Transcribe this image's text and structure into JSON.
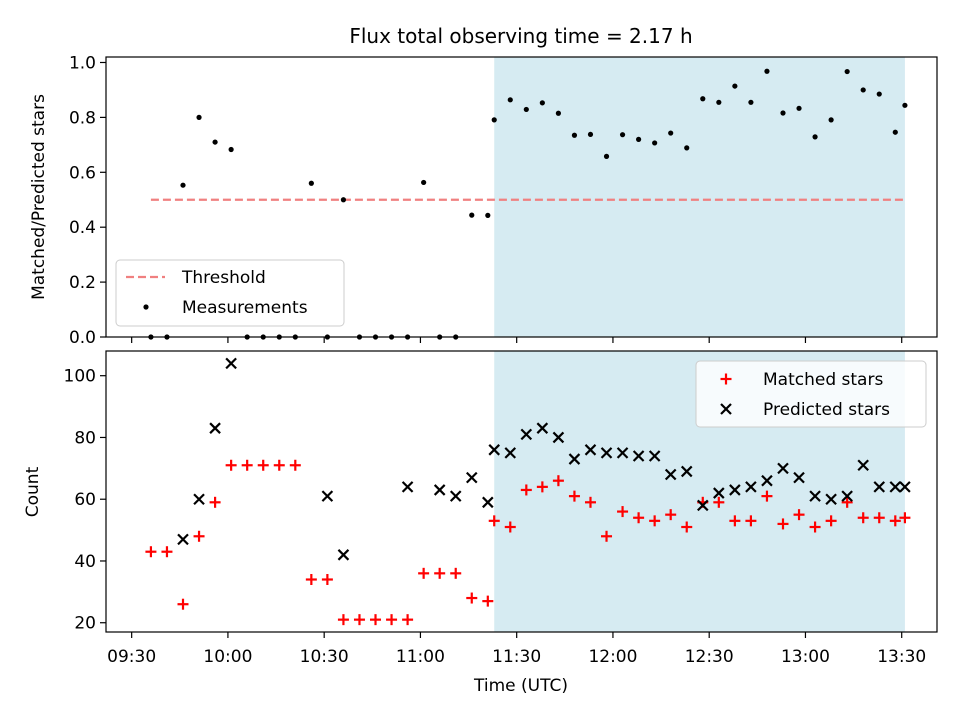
{
  "chart_data": [
    {
      "type": "scatter",
      "title": "Flux total observing time = 2.17 h",
      "ylabel": "Matched/Predicted stars",
      "ylim": [
        0,
        1.02
      ],
      "yticks": [
        0.0,
        0.2,
        0.4,
        0.6,
        0.8,
        1.0
      ],
      "ytick_labels": [
        "0.0",
        "0.2",
        "0.4",
        "0.6",
        "0.8",
        "1.0"
      ],
      "grid": false,
      "legend_position": "lower-left",
      "threshold": {
        "name": "Threshold",
        "value": 0.5,
        "x_start": "09:36",
        "x_end": "13:31",
        "color": "#f08080"
      },
      "shaded_region": {
        "x_start": "11:23",
        "x_end": "13:31",
        "color": "#add8e6"
      },
      "series": [
        {
          "name": "Measurements",
          "color": "#000000",
          "marker": "dot",
          "x": [
            "09:36",
            "09:41",
            "09:46",
            "09:51",
            "09:56",
            "10:01",
            "10:06",
            "10:11",
            "10:16",
            "10:21",
            "10:26",
            "10:31",
            "10:36",
            "10:41",
            "10:46",
            "10:51",
            "10:56",
            "11:01",
            "11:06",
            "11:11",
            "11:16",
            "11:21",
            "11:23",
            "11:28",
            "11:33",
            "11:38",
            "11:43",
            "11:48",
            "11:53",
            "11:58",
            "12:03",
            "12:08",
            "12:13",
            "12:18",
            "12:23",
            "12:28",
            "12:33",
            "12:38",
            "12:43",
            "12:48",
            "12:53",
            "12:58",
            "13:03",
            "13:08",
            "13:13",
            "13:18",
            "13:23",
            "13:28",
            "13:31"
          ],
          "y": [
            0.0,
            0.0,
            0.553,
            0.8,
            0.71,
            0.683,
            0.0,
            0.0,
            0.0,
            0.0,
            0.56,
            0.0,
            0.5,
            0.0,
            0.0,
            0.0,
            0.0,
            0.563,
            0.0,
            0.0,
            0.444,
            0.443,
            0.791,
            0.864,
            0.829,
            0.853,
            0.815,
            0.735,
            0.738,
            0.658,
            0.737,
            0.72,
            0.707,
            0.743,
            0.689,
            0.868,
            0.855,
            0.914,
            0.855,
            0.968,
            0.816,
            0.833,
            0.729,
            0.791,
            0.967,
            0.9,
            0.885,
            0.746,
            0.844
          ]
        }
      ]
    },
    {
      "type": "scatter",
      "ylabel": "Count",
      "xlabel": "Time (UTC)",
      "ylim": [
        17,
        108
      ],
      "yticks": [
        20,
        40,
        60,
        80,
        100
      ],
      "ytick_labels": [
        "20",
        "40",
        "60",
        "80",
        "100"
      ],
      "xlim": [
        "09:22",
        "13:41"
      ],
      "xticks": [
        "09:30",
        "10:00",
        "10:30",
        "11:00",
        "11:30",
        "12:00",
        "12:30",
        "13:00",
        "13:30"
      ],
      "grid": false,
      "legend_position": "upper-right",
      "shaded_region": {
        "x_start": "11:23",
        "x_end": "13:31",
        "color": "#add8e6"
      },
      "series": [
        {
          "name": "Matched stars",
          "color": "#ff0000",
          "marker": "plus",
          "x": [
            "09:36",
            "09:41",
            "09:46",
            "09:51",
            "09:56",
            "10:01",
            "10:06",
            "10:11",
            "10:16",
            "10:21",
            "10:26",
            "10:31",
            "10:36",
            "10:41",
            "10:46",
            "10:51",
            "10:56",
            "11:01",
            "11:06",
            "11:11",
            "11:16",
            "11:21",
            "11:23",
            "11:28",
            "11:33",
            "11:38",
            "11:43",
            "11:48",
            "11:53",
            "11:58",
            "12:03",
            "12:08",
            "12:13",
            "12:18",
            "12:23",
            "12:28",
            "12:33",
            "12:38",
            "12:43",
            "12:48",
            "12:53",
            "12:58",
            "13:03",
            "13:08",
            "13:13",
            "13:18",
            "13:23",
            "13:28",
            "13:31"
          ],
          "y": [
            43,
            43,
            26,
            48,
            59,
            71,
            71,
            71,
            71,
            71,
            34,
            34,
            21,
            21,
            21,
            21,
            21,
            36,
            36,
            36,
            28,
            27,
            53,
            51,
            63,
            64,
            66,
            61,
            59,
            48,
            56,
            54,
            53,
            55,
            51,
            59,
            59,
            53,
            53,
            61,
            52,
            55,
            51,
            53,
            59,
            54,
            54,
            53,
            54
          ]
        },
        {
          "name": "Predicted stars",
          "color": "#000000",
          "marker": "x",
          "x": [
            "09:46",
            "09:51",
            "09:56",
            "10:01",
            "10:31",
            "10:36",
            "10:56",
            "11:06",
            "11:11",
            "11:16",
            "11:21",
            "11:23",
            "11:28",
            "11:33",
            "11:38",
            "11:43",
            "11:48",
            "11:53",
            "11:58",
            "12:03",
            "12:08",
            "12:13",
            "12:18",
            "12:23",
            "12:28",
            "12:33",
            "12:38",
            "12:43",
            "12:48",
            "12:53",
            "12:58",
            "13:03",
            "13:08",
            "13:13",
            "13:18",
            "13:23",
            "13:28",
            "13:31"
          ],
          "y": [
            47,
            60,
            83,
            104,
            61,
            42,
            64,
            63,
            61,
            67,
            59,
            76,
            75,
            81,
            83,
            80,
            73,
            76,
            75,
            75,
            74,
            74,
            68,
            69,
            58,
            62,
            63,
            64,
            66,
            70,
            67,
            61,
            60,
            61,
            71,
            64,
            64,
            64
          ]
        }
      ]
    }
  ]
}
